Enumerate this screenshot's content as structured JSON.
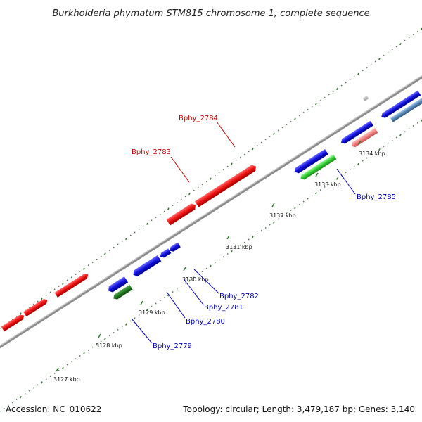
{
  "title": "Burkholderia phymatum STM815 chromosome 1, complete sequence",
  "footer": {
    "accession": "Accession: NC_010622",
    "summary": "Topology: circular; Length: 3,479,187 bp; Genes: 3,140"
  },
  "colors": {
    "backbone": "#8c8c8c",
    "tick": "#2a7a2a",
    "forward_gene": "#ee1111",
    "reverse_gene": "#1111dd",
    "rna_gene": "#227a22",
    "bright_green_gene": "#33cc33",
    "pink_gene": "#f08080",
    "steel_gene": "#5588bb",
    "label_red": "#cc0000",
    "label_blue": "#0000bb"
  },
  "ticks": [
    {
      "label": "3127 kbp"
    },
    {
      "label": "3128 kbp"
    },
    {
      "label": "3129 kbp"
    },
    {
      "label": "3130 kbp"
    },
    {
      "label": "3131 kbp"
    },
    {
      "label": "3132 kbp"
    },
    {
      "label": "3133 kbp"
    },
    {
      "label": "3134 kbp"
    }
  ],
  "gene_labels": [
    {
      "text": "Bphy_2784",
      "strand": "forward"
    },
    {
      "text": "Bphy_2783",
      "strand": "forward"
    },
    {
      "text": "Bphy_2785",
      "strand": "reverse"
    },
    {
      "text": "Bphy_2782",
      "strand": "reverse"
    },
    {
      "text": "Bphy_2781",
      "strand": "reverse"
    },
    {
      "text": "Bphy_2780",
      "strand": "reverse"
    },
    {
      "text": "Bphy_2779",
      "strand": "reverse"
    }
  ]
}
